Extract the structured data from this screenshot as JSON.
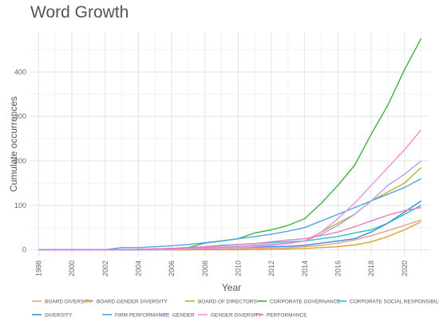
{
  "chart_data": {
    "type": "line",
    "title": "Word Growth",
    "xlabel": "Year",
    "ylabel": "Cumulate occurrences",
    "xlim": [
      1997.5,
      2021.5
    ],
    "ylim": [
      -15,
      490
    ],
    "x_ticks": [
      1998,
      2000,
      2002,
      2004,
      2006,
      2008,
      2010,
      2012,
      2014,
      2016,
      2018,
      2020
    ],
    "x_tick_labels": [
      "1998",
      "2000",
      "2002",
      "2004",
      "2006",
      "2008",
      "2010",
      "2012",
      "2014",
      "2016",
      "2018",
      "2020"
    ],
    "y_ticks": [
      0,
      100,
      200,
      300,
      400
    ],
    "y_tick_labels": [
      "0",
      "100",
      "200",
      "300",
      "400"
    ],
    "grid": true,
    "legend_position": "bottom",
    "x": [
      1998,
      1999,
      2000,
      2001,
      2002,
      2003,
      2004,
      2005,
      2006,
      2007,
      2008,
      2009,
      2010,
      2011,
      2012,
      2013,
      2014,
      2015,
      2016,
      2017,
      2018,
      2019,
      2020,
      2021
    ],
    "series": [
      {
        "name": "BOARD DIVERSITY",
        "color": "#e6a08a",
        "values": [
          0,
          0,
          0,
          0,
          0,
          0,
          0,
          0,
          0,
          0,
          1,
          1,
          2,
          3,
          4,
          5,
          7,
          10,
          15,
          22,
          32,
          43,
          55,
          67
        ]
      },
      {
        "name": "BOARD GENDER DIVERSITY",
        "color": "#d4a72c",
        "values": [
          0,
          0,
          0,
          0,
          0,
          0,
          0,
          0,
          0,
          0,
          0,
          0,
          0,
          1,
          1,
          2,
          3,
          5,
          7,
          11,
          18,
          30,
          45,
          63
        ]
      },
      {
        "name": "BOARD OF DIRECTORS",
        "color": "#b5b81f",
        "values": [
          0,
          0,
          0,
          0,
          0,
          0,
          1,
          2,
          3,
          4,
          5,
          6,
          8,
          10,
          12,
          14,
          20,
          40,
          60,
          80,
          110,
          130,
          150,
          185
        ]
      },
      {
        "name": "CORPORATE GOVERNANCE",
        "color": "#3cb043",
        "values": [
          0,
          0,
          0,
          0,
          0,
          0,
          1,
          2,
          3,
          5,
          15,
          20,
          25,
          38,
          45,
          55,
          70,
          105,
          145,
          190,
          260,
          325,
          405,
          475
        ]
      },
      {
        "name": "CORPORATE SOCIAL RESPONSIBILITY",
        "color": "#25c3c0",
        "values": [
          0,
          0,
          0,
          0,
          0,
          0,
          1,
          2,
          3,
          5,
          7,
          10,
          12,
          14,
          16,
          18,
          20,
          25,
          30,
          38,
          45,
          60,
          80,
          100
        ]
      },
      {
        "name": "DIVERSITY",
        "color": "#3d8fd6",
        "values": [
          0,
          0,
          0,
          0,
          0,
          0,
          0,
          0,
          1,
          2,
          3,
          4,
          5,
          6,
          7,
          8,
          10,
          15,
          20,
          25,
          40,
          60,
          85,
          110
        ]
      },
      {
        "name": "FIRM PERFORMANCE",
        "color": "#4fa3e6",
        "values": [
          0,
          0,
          0,
          0,
          0,
          5,
          5,
          7,
          9,
          12,
          16,
          20,
          25,
          30,
          35,
          42,
          50,
          65,
          80,
          95,
          110,
          125,
          140,
          160
        ]
      },
      {
        "name": "GENDER",
        "color": "#a9a4e8",
        "values": [
          0,
          0,
          0,
          0,
          0,
          0,
          1,
          1,
          2,
          3,
          4,
          6,
          8,
          10,
          12,
          15,
          20,
          35,
          55,
          80,
          110,
          145,
          170,
          200
        ]
      },
      {
        "name": "GENDER DIVERSITY",
        "color": "#f08ae6",
        "values": [
          0,
          0,
          0,
          0,
          0,
          0,
          0,
          0,
          1,
          2,
          3,
          4,
          5,
          7,
          10,
          14,
          20,
          40,
          70,
          105,
          145,
          185,
          225,
          270
        ]
      },
      {
        "name": "PERFORMANCE",
        "color": "#e879c9",
        "values": [
          0,
          0,
          0,
          0,
          0,
          0,
          1,
          2,
          3,
          5,
          7,
          9,
          12,
          14,
          18,
          22,
          25,
          32,
          40,
          52,
          65,
          78,
          88,
          95
        ]
      }
    ]
  }
}
